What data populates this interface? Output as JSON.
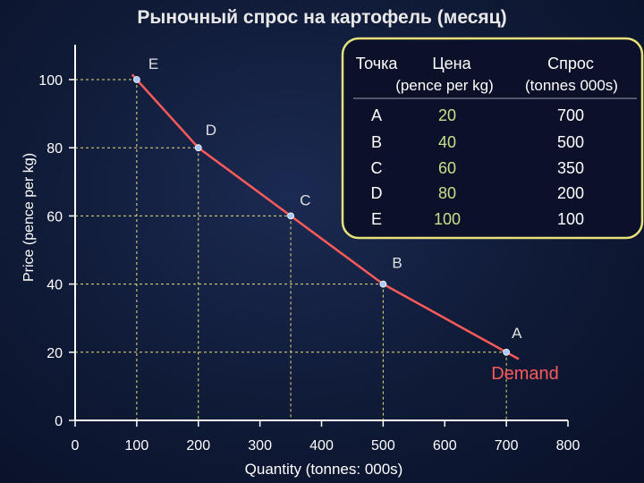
{
  "slide": {
    "title": "Рыночный спрос на картофель (месяц)"
  },
  "chart_data": {
    "type": "line",
    "title": "Рыночный спрос на картофель (месяц)",
    "xlabel": "Quantity (tonnes: 000s)",
    "ylabel": "Price (pence per kg)",
    "xlim": [
      0,
      800
    ],
    "ylim": [
      0,
      100
    ],
    "x_ticks": [
      "0",
      "100",
      "200",
      "300",
      "400",
      "500",
      "600",
      "700",
      "800"
    ],
    "y_ticks": [
      "0",
      "20",
      "40",
      "60",
      "80",
      "100"
    ],
    "grid": false,
    "series": [
      {
        "name": "Demand",
        "color": "#ff5a5a",
        "points": [
          {
            "label": "E",
            "x": 100,
            "y": 100
          },
          {
            "label": "D",
            "x": 200,
            "y": 80
          },
          {
            "label": "C",
            "x": 350,
            "y": 60
          },
          {
            "label": "B",
            "x": 500,
            "y": 40
          },
          {
            "label": "A",
            "x": 700,
            "y": 20
          }
        ]
      }
    ],
    "curve_label": "Demand",
    "table": {
      "headers": [
        "Точка",
        "Цена",
        "Спрос"
      ],
      "subheaders": [
        "",
        "(pence per kg)",
        "(tonnes 000s)"
      ],
      "rows": [
        [
          "A",
          "20",
          "700"
        ],
        [
          "B",
          "40",
          "500"
        ],
        [
          "C",
          "60",
          "350"
        ],
        [
          "D",
          "80",
          "200"
        ],
        [
          "E",
          "100",
          "100"
        ]
      ]
    },
    "colors": {
      "background": "#0f1a36",
      "title": "#e8e8e8",
      "axis": "#ffffff",
      "curve": "#ff5a5a",
      "guide": "#e8e07a",
      "point": "#a8c8ff",
      "point_label": "#e0e0e0",
      "demand_label": "#ff5a5a",
      "table_border": "#e8e07a",
      "price_col": "#c8e08a",
      "qty_col": "#ffffff"
    }
  }
}
